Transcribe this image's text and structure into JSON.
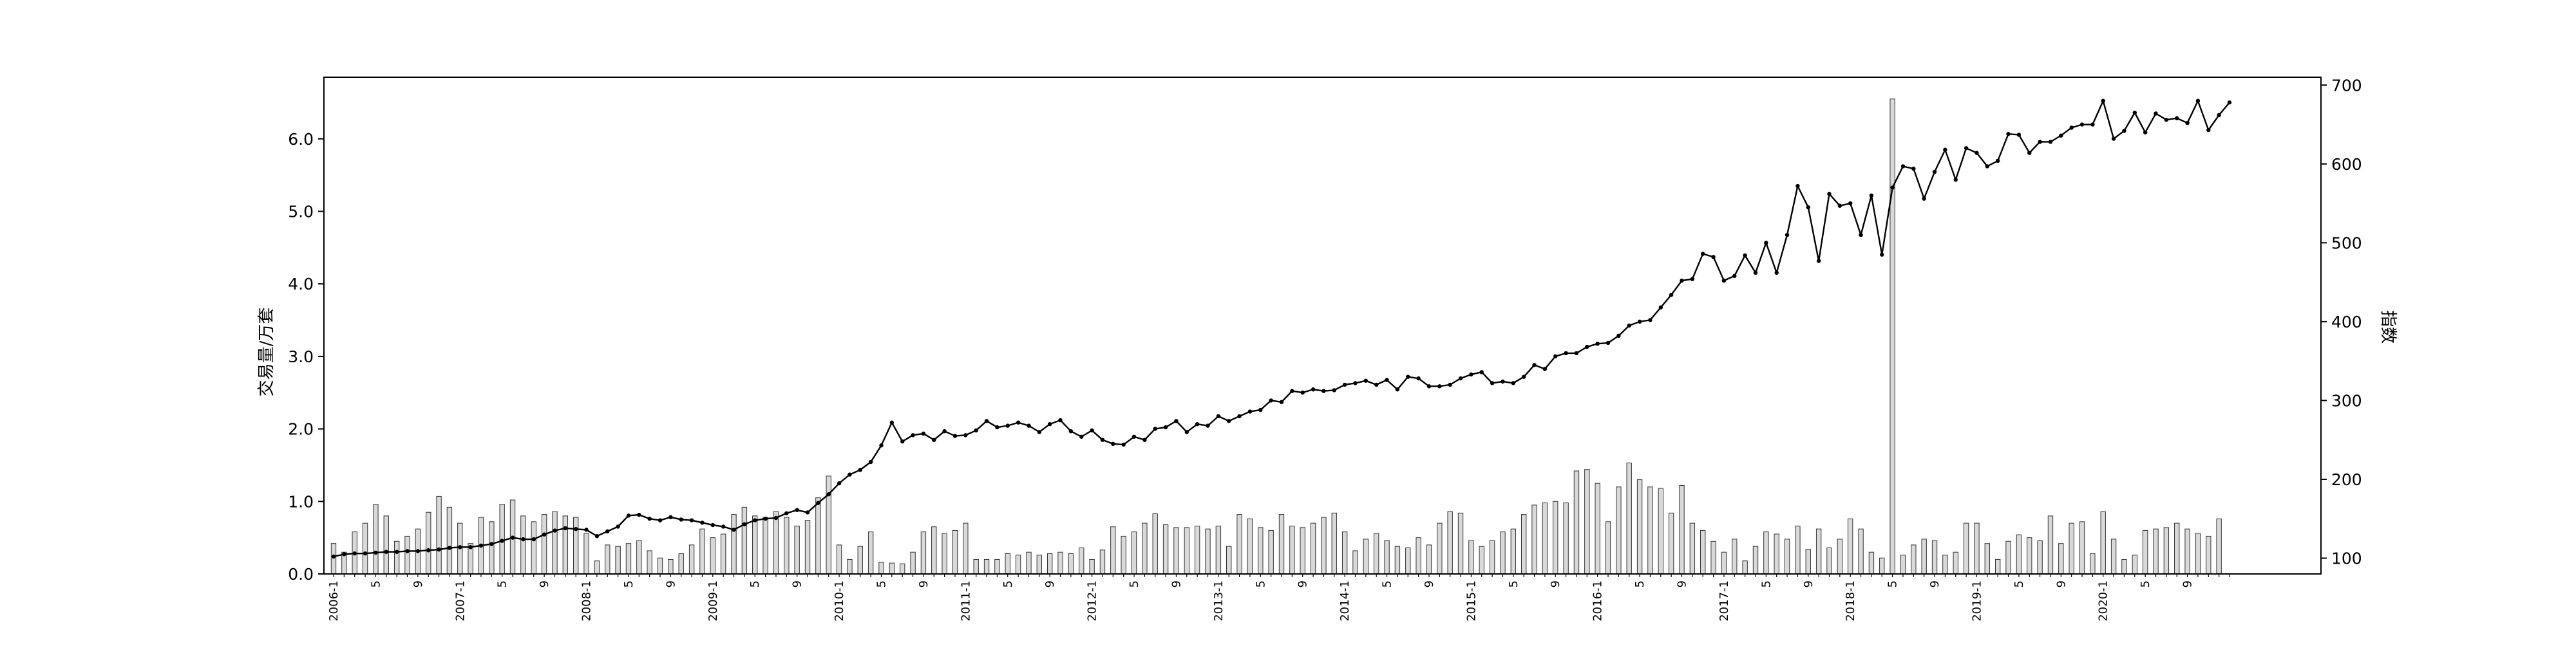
{
  "chart_data": {
    "type": "bar+line",
    "y_left_label": "交易量/万套",
    "y_right_label": "指数",
    "y_left_ticks": [
      "0.0",
      "1.0",
      "2.0",
      "3.0",
      "4.0",
      "5.0",
      "6.0"
    ],
    "y_right_ticks": [
      "100",
      "200",
      "300",
      "400",
      "500",
      "600",
      "700"
    ],
    "ylim_left": [
      0,
      6.85
    ],
    "ylim_right": [
      80,
      710
    ],
    "grid": false,
    "start": "2006-01",
    "x_tick_labels": [
      {
        "i": 0,
        "label": "2006-1"
      },
      {
        "i": 4,
        "label": "5"
      },
      {
        "i": 8,
        "label": "9"
      },
      {
        "i": 12,
        "label": "2007-1"
      },
      {
        "i": 16,
        "label": "5"
      },
      {
        "i": 20,
        "label": "9"
      },
      {
        "i": 24,
        "label": "2008-1"
      },
      {
        "i": 28,
        "label": "5"
      },
      {
        "i": 32,
        "label": "9"
      },
      {
        "i": 36,
        "label": "2009-1"
      },
      {
        "i": 40,
        "label": "5"
      },
      {
        "i": 44,
        "label": "9"
      },
      {
        "i": 48,
        "label": "2010-1"
      },
      {
        "i": 52,
        "label": "5"
      },
      {
        "i": 56,
        "label": "9"
      },
      {
        "i": 60,
        "label": "2011-1"
      },
      {
        "i": 64,
        "label": "5"
      },
      {
        "i": 68,
        "label": "9"
      },
      {
        "i": 72,
        "label": "2012-1"
      },
      {
        "i": 76,
        "label": "5"
      },
      {
        "i": 80,
        "label": "9"
      },
      {
        "i": 84,
        "label": "2013-1"
      },
      {
        "i": 88,
        "label": "5"
      },
      {
        "i": 92,
        "label": "9"
      },
      {
        "i": 96,
        "label": "2014-1"
      },
      {
        "i": 100,
        "label": "5"
      },
      {
        "i": 104,
        "label": "9"
      },
      {
        "i": 108,
        "label": "2015-1"
      },
      {
        "i": 112,
        "label": "5"
      },
      {
        "i": 116,
        "label": "9"
      },
      {
        "i": 120,
        "label": "2016-1"
      },
      {
        "i": 124,
        "label": "5"
      },
      {
        "i": 128,
        "label": "9"
      },
      {
        "i": 132,
        "label": "2017-1"
      },
      {
        "i": 136,
        "label": "5"
      },
      {
        "i": 140,
        "label": "9"
      },
      {
        "i": 144,
        "label": "2018-1"
      },
      {
        "i": 148,
        "label": "5"
      },
      {
        "i": 152,
        "label": "9"
      },
      {
        "i": 156,
        "label": "2019-1"
      },
      {
        "i": 160,
        "label": "5"
      },
      {
        "i": 164,
        "label": "9"
      },
      {
        "i": 168,
        "label": "2020-1"
      },
      {
        "i": 172,
        "label": "5"
      },
      {
        "i": 176,
        "label": "9"
      }
    ],
    "series": [
      {
        "type": "bar",
        "axis": "left",
        "values": [
          0.42,
          0.3,
          0.58,
          0.7,
          0.96,
          0.8,
          0.45,
          0.52,
          0.62,
          0.85,
          1.07,
          0.92,
          0.7,
          0.42,
          0.78,
          0.72,
          0.96,
          1.02,
          0.8,
          0.72,
          0.82,
          0.86,
          0.8,
          0.78,
          0.56,
          0.18,
          0.4,
          0.38,
          0.42,
          0.46,
          0.32,
          0.22,
          0.2,
          0.28,
          0.4,
          0.62,
          0.5,
          0.55,
          0.82,
          0.92,
          0.8,
          0.78,
          0.86,
          0.78,
          0.66,
          0.74,
          1.05,
          1.35,
          0.4,
          0.2,
          0.38,
          0.58,
          0.16,
          0.15,
          0.14,
          0.3,
          0.58,
          0.65,
          0.56,
          0.6,
          0.7,
          0.2,
          0.2,
          0.2,
          0.28,
          0.26,
          0.3,
          0.26,
          0.28,
          0.3,
          0.28,
          0.36,
          0.2,
          0.33,
          0.65,
          0.52,
          0.58,
          0.7,
          0.83,
          0.68,
          0.64,
          0.64,
          0.66,
          0.62,
          0.66,
          0.38,
          0.82,
          0.76,
          0.64,
          0.6,
          0.82,
          0.66,
          0.64,
          0.7,
          0.78,
          0.84,
          0.58,
          0.32,
          0.48,
          0.56,
          0.46,
          0.38,
          0.36,
          0.5,
          0.4,
          0.7,
          0.86,
          0.84,
          0.46,
          0.38,
          0.46,
          0.58,
          0.62,
          0.82,
          0.95,
          0.98,
          1.0,
          0.98,
          1.42,
          1.44,
          1.25,
          0.72,
          1.2,
          1.53,
          1.3,
          1.2,
          1.18,
          0.84,
          1.22,
          0.7,
          0.6,
          0.45,
          0.3,
          0.48,
          0.18,
          0.38,
          0.58,
          0.55,
          0.48,
          0.66,
          0.34,
          0.62,
          0.36,
          0.48,
          0.76,
          0.62,
          0.3,
          0.22,
          6.55,
          0.26,
          0.4,
          0.48,
          0.46,
          0.26,
          0.3,
          0.7,
          0.7,
          0.42,
          0.2,
          0.45,
          0.54,
          0.5,
          0.46,
          0.8,
          0.42,
          0.7,
          0.72,
          0.28,
          0.86,
          0.48,
          0.2,
          0.26,
          0.6,
          0.62,
          0.64,
          0.7,
          0.62,
          0.56,
          0.52,
          0.76
        ]
      },
      {
        "type": "line",
        "axis": "right",
        "values": [
          102,
          105,
          106,
          106,
          107,
          108,
          108,
          109,
          109,
          110,
          111,
          113,
          114,
          114,
          116,
          118,
          122,
          126,
          124,
          124,
          130,
          135,
          138,
          137,
          136,
          128,
          134,
          140,
          154,
          155,
          150,
          148,
          152,
          149,
          148,
          145,
          142,
          140,
          136,
          143,
          148,
          150,
          151,
          157,
          161,
          158,
          170,
          181,
          195,
          206,
          212,
          222,
          243,
          272,
          248,
          256,
          258,
          250,
          261,
          255,
          256,
          262,
          274,
          266,
          268,
          272,
          268,
          260,
          270,
          275,
          261,
          254,
          262,
          250,
          245,
          244,
          254,
          250,
          264,
          266,
          274,
          260,
          270,
          268,
          280,
          274,
          280,
          286,
          288,
          300,
          298,
          312,
          310,
          314,
          312,
          313,
          320,
          322,
          325,
          320,
          326,
          314,
          330,
          328,
          318,
          318,
          320,
          328,
          333,
          336,
          322,
          324,
          322,
          330,
          345,
          340,
          356,
          360,
          360,
          368,
          372,
          373,
          382,
          395,
          400,
          402,
          418,
          434,
          452,
          454,
          486,
          482,
          452,
          458,
          484,
          462,
          500,
          462,
          510,
          572,
          545,
          477,
          562,
          547,
          550,
          510,
          560,
          485,
          570,
          597,
          594,
          556,
          590,
          618,
          580,
          620,
          614,
          597,
          604,
          638,
          637,
          614,
          628,
          628,
          636,
          646,
          650,
          650,
          680,
          632,
          642,
          665,
          640,
          664,
          656,
          658,
          652,
          680,
          643,
          662,
          678
        ]
      }
    ]
  }
}
